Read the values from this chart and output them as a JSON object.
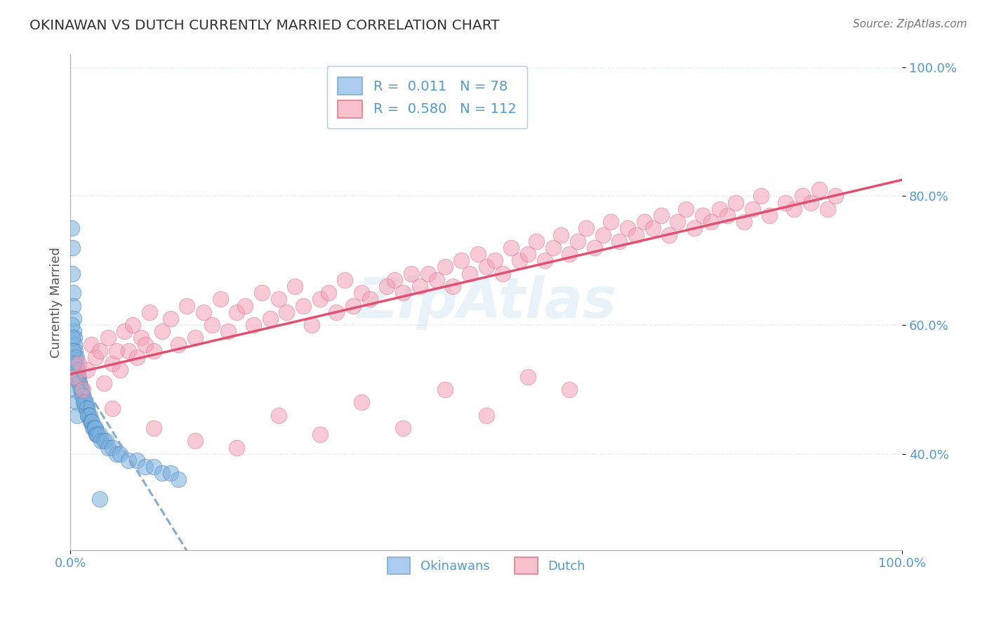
{
  "title": "OKINAWAN VS DUTCH CURRENTLY MARRIED CORRELATION CHART",
  "source": "Source: ZipAtlas.com",
  "ylabel": "Currently Married",
  "xlim": [
    0.0,
    1.0
  ],
  "ylim": [
    0.25,
    1.02
  ],
  "yticks": [
    0.4,
    0.6,
    0.8,
    1.0
  ],
  "ytick_labels": [
    "40.0%",
    "60.0%",
    "80.0%",
    "100.0%"
  ],
  "okinawan_color": "#7ab0de",
  "dutch_color": "#f4a0b8",
  "okinawan_edge": "#5588bb",
  "dutch_edge": "#dd8090",
  "axis_color": "#5599cc",
  "grid_color": "#d0e4f0",
  "okinawan_R": 0.011,
  "dutch_R": 0.58,
  "okinawan_N": 78,
  "dutch_N": 112,
  "okinawan_line_color": "#88aacc",
  "dutch_line_color": "#e05070",
  "background_color": "#ffffff",
  "okinawan_x": [
    0.001,
    0.002,
    0.002,
    0.003,
    0.003,
    0.004,
    0.004,
    0.005,
    0.005,
    0.006,
    0.006,
    0.007,
    0.007,
    0.008,
    0.008,
    0.009,
    0.009,
    0.01,
    0.01,
    0.011,
    0.011,
    0.012,
    0.012,
    0.013,
    0.013,
    0.014,
    0.014,
    0.015,
    0.015,
    0.016,
    0.016,
    0.017,
    0.017,
    0.018,
    0.018,
    0.019,
    0.019,
    0.02,
    0.02,
    0.021,
    0.021,
    0.022,
    0.022,
    0.023,
    0.024,
    0.025,
    0.026,
    0.027,
    0.028,
    0.029,
    0.03,
    0.031,
    0.032,
    0.033,
    0.035,
    0.037,
    0.04,
    0.043,
    0.045,
    0.05,
    0.055,
    0.06,
    0.07,
    0.08,
    0.09,
    0.1,
    0.11,
    0.12,
    0.13,
    0.001,
    0.002,
    0.003,
    0.004,
    0.005,
    0.006,
    0.007,
    0.008,
    0.035
  ],
  "okinawan_y": [
    0.75,
    0.72,
    0.68,
    0.65,
    0.63,
    0.61,
    0.59,
    0.58,
    0.57,
    0.56,
    0.55,
    0.55,
    0.54,
    0.53,
    0.53,
    0.52,
    0.52,
    0.52,
    0.51,
    0.51,
    0.51,
    0.5,
    0.5,
    0.5,
    0.5,
    0.49,
    0.49,
    0.49,
    0.49,
    0.48,
    0.48,
    0.48,
    0.48,
    0.48,
    0.47,
    0.47,
    0.47,
    0.47,
    0.47,
    0.46,
    0.46,
    0.46,
    0.46,
    0.46,
    0.45,
    0.45,
    0.45,
    0.44,
    0.44,
    0.44,
    0.44,
    0.43,
    0.43,
    0.43,
    0.43,
    0.42,
    0.42,
    0.42,
    0.41,
    0.41,
    0.4,
    0.4,
    0.39,
    0.39,
    0.38,
    0.38,
    0.37,
    0.37,
    0.36,
    0.6,
    0.58,
    0.56,
    0.54,
    0.52,
    0.5,
    0.48,
    0.46,
    0.33
  ],
  "dutch_x": [
    0.005,
    0.01,
    0.015,
    0.02,
    0.025,
    0.03,
    0.035,
    0.04,
    0.045,
    0.05,
    0.055,
    0.06,
    0.065,
    0.07,
    0.075,
    0.08,
    0.085,
    0.09,
    0.095,
    0.1,
    0.11,
    0.12,
    0.13,
    0.14,
    0.15,
    0.16,
    0.17,
    0.18,
    0.19,
    0.2,
    0.21,
    0.22,
    0.23,
    0.24,
    0.25,
    0.26,
    0.27,
    0.28,
    0.29,
    0.3,
    0.31,
    0.32,
    0.33,
    0.34,
    0.35,
    0.36,
    0.38,
    0.39,
    0.4,
    0.41,
    0.42,
    0.43,
    0.44,
    0.45,
    0.46,
    0.47,
    0.48,
    0.49,
    0.5,
    0.51,
    0.52,
    0.53,
    0.54,
    0.55,
    0.56,
    0.57,
    0.58,
    0.59,
    0.6,
    0.61,
    0.62,
    0.63,
    0.64,
    0.65,
    0.66,
    0.67,
    0.68,
    0.69,
    0.7,
    0.71,
    0.72,
    0.73,
    0.74,
    0.75,
    0.76,
    0.77,
    0.78,
    0.79,
    0.8,
    0.81,
    0.82,
    0.83,
    0.84,
    0.86,
    0.87,
    0.88,
    0.89,
    0.9,
    0.91,
    0.92,
    0.05,
    0.1,
    0.15,
    0.2,
    0.25,
    0.3,
    0.35,
    0.4,
    0.45,
    0.5,
    0.55,
    0.6
  ],
  "dutch_y": [
    0.52,
    0.54,
    0.5,
    0.53,
    0.57,
    0.55,
    0.56,
    0.51,
    0.58,
    0.54,
    0.56,
    0.53,
    0.59,
    0.56,
    0.6,
    0.55,
    0.58,
    0.57,
    0.62,
    0.56,
    0.59,
    0.61,
    0.57,
    0.63,
    0.58,
    0.62,
    0.6,
    0.64,
    0.59,
    0.62,
    0.63,
    0.6,
    0.65,
    0.61,
    0.64,
    0.62,
    0.66,
    0.63,
    0.6,
    0.64,
    0.65,
    0.62,
    0.67,
    0.63,
    0.65,
    0.64,
    0.66,
    0.67,
    0.65,
    0.68,
    0.66,
    0.68,
    0.67,
    0.69,
    0.66,
    0.7,
    0.68,
    0.71,
    0.69,
    0.7,
    0.68,
    0.72,
    0.7,
    0.71,
    0.73,
    0.7,
    0.72,
    0.74,
    0.71,
    0.73,
    0.75,
    0.72,
    0.74,
    0.76,
    0.73,
    0.75,
    0.74,
    0.76,
    0.75,
    0.77,
    0.74,
    0.76,
    0.78,
    0.75,
    0.77,
    0.76,
    0.78,
    0.77,
    0.79,
    0.76,
    0.78,
    0.8,
    0.77,
    0.79,
    0.78,
    0.8,
    0.79,
    0.81,
    0.78,
    0.8,
    0.47,
    0.44,
    0.42,
    0.41,
    0.46,
    0.43,
    0.48,
    0.44,
    0.5,
    0.46,
    0.52,
    0.5
  ]
}
